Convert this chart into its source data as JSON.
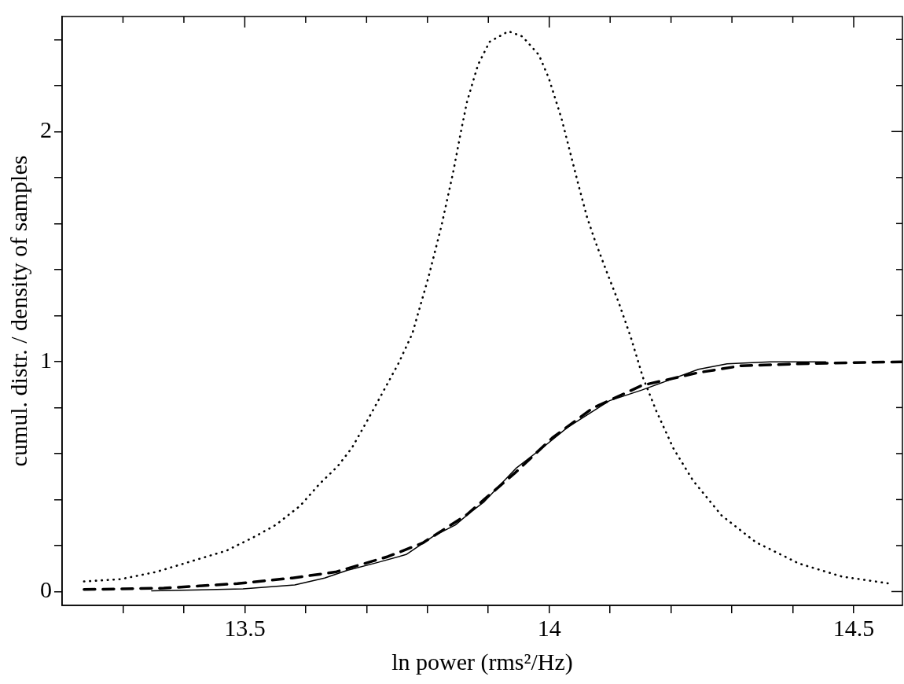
{
  "chart_data": {
    "type": "line",
    "xlabel": "ln power (rms²/Hz)",
    "ylabel": "cumul. distr. / density of samples",
    "xlim": [
      13.2,
      14.58
    ],
    "ylim": [
      -0.06,
      2.5
    ],
    "xticks": [
      {
        "value": 13.3,
        "label": null
      },
      {
        "value": 13.4,
        "label": null
      },
      13.5,
      {
        "value": 13.6,
        "label": null
      },
      {
        "value": 13.7,
        "label": null
      },
      {
        "value": 13.8,
        "label": null
      },
      {
        "value": 13.9,
        "label": null
      },
      14,
      {
        "value": 14.1,
        "label": null
      },
      {
        "value": 14.2,
        "label": null
      },
      {
        "value": 14.3,
        "label": null
      },
      {
        "value": 14.4,
        "label": null
      },
      14.5
    ],
    "yticks": [
      0,
      {
        "value": 0.2,
        "label": null
      },
      {
        "value": 0.4,
        "label": null
      },
      {
        "value": 0.6,
        "label": null
      },
      {
        "value": 0.8,
        "label": null
      },
      1,
      {
        "value": 1.2,
        "label": null
      },
      {
        "value": 1.4,
        "label": null
      },
      {
        "value": 1.6,
        "label": null
      },
      {
        "value": 1.8,
        "label": null
      },
      2,
      {
        "value": 2.2,
        "label": null
      },
      {
        "value": 2.4,
        "label": null
      }
    ],
    "legend": false,
    "marker": "none",
    "series": [
      {
        "color": "#000000",
        "line_style": "dotted",
        "x": [
          13.236,
          13.296,
          13.354,
          13.42,
          13.47,
          13.515,
          13.551,
          13.591,
          13.622,
          13.652,
          13.676,
          13.702,
          13.728,
          13.752,
          13.775,
          13.802,
          13.823,
          13.842,
          13.855,
          13.865,
          13.883,
          13.902,
          13.933,
          13.956,
          13.983,
          13.999,
          14.02,
          14.034,
          14.048,
          14.062,
          14.076,
          14.095,
          14.114,
          14.134,
          14.154,
          14.176,
          14.204,
          14.236,
          14.283,
          14.339,
          14.41,
          14.481,
          14.556
        ],
        "values": [
          0.044,
          0.054,
          0.085,
          0.138,
          0.178,
          0.237,
          0.29,
          0.373,
          0.466,
          0.543,
          0.625,
          0.747,
          0.873,
          0.99,
          1.12,
          1.37,
          1.59,
          1.82,
          2.0,
          2.13,
          2.29,
          2.39,
          2.436,
          2.413,
          2.333,
          2.234,
          2.058,
          1.913,
          1.767,
          1.628,
          1.519,
          1.386,
          1.257,
          1.105,
          0.93,
          0.784,
          0.622,
          0.483,
          0.331,
          0.215,
          0.122,
          0.065,
          0.036
        ]
      },
      {
        "color": "#000000",
        "line_style": "solid",
        "x": [
          13.347,
          13.497,
          13.582,
          13.631,
          13.668,
          13.716,
          13.765,
          13.81,
          13.846,
          13.873,
          13.893,
          13.945,
          13.987,
          14.03,
          14.099,
          14.152,
          14.245,
          14.292,
          14.363,
          14.454
        ],
        "values": [
          0.003,
          0.012,
          0.029,
          0.059,
          0.092,
          0.125,
          0.161,
          0.241,
          0.29,
          0.35,
          0.39,
          0.535,
          0.621,
          0.714,
          0.83,
          0.876,
          0.966,
          0.99,
          0.999,
          0.999
        ]
      },
      {
        "color": "#000000",
        "line_style": "dashed",
        "x": [
          13.236,
          13.367,
          13.488,
          13.578,
          13.649,
          13.735,
          13.792,
          13.864,
          13.893,
          13.945,
          14.005,
          14.071,
          14.152,
          14.245,
          14.316,
          14.434,
          14.579
        ],
        "values": [
          0.009,
          0.015,
          0.035,
          0.059,
          0.085,
          0.152,
          0.211,
          0.333,
          0.4,
          0.519,
          0.668,
          0.797,
          0.896,
          0.952,
          0.982,
          0.992,
          0.999
        ]
      }
    ]
  }
}
